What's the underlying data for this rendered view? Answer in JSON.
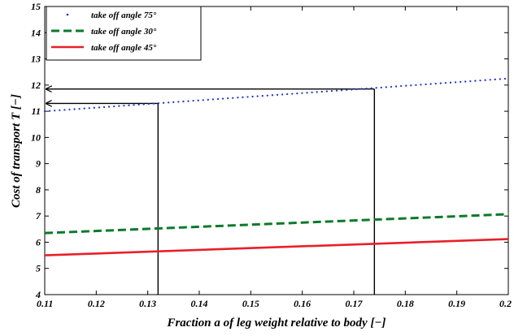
{
  "chart_data": {
    "type": "line",
    "title": "",
    "xlabel": "Fraction a of leg weight relative to body [−]",
    "ylabel": "Cost of transport T [−]",
    "xlim": [
      0.11,
      0.2
    ],
    "ylim": [
      4,
      15
    ],
    "x_ticks": [
      0.11,
      0.12,
      0.13,
      0.14,
      0.15,
      0.16,
      0.17,
      0.18,
      0.19,
      0.2
    ],
    "x_tick_labels": [
      "0.11",
      "0.12",
      "0.13",
      "0.14",
      "0.15",
      "0.16",
      "0.17",
      "0.18",
      "0.19",
      "0.2"
    ],
    "y_ticks": [
      4,
      5,
      6,
      7,
      8,
      9,
      10,
      11,
      12,
      13,
      14,
      15
    ],
    "y_tick_labels": [
      "4",
      "5",
      "6",
      "7",
      "8",
      "9",
      "10",
      "11",
      "12",
      "13",
      "14",
      "15"
    ],
    "grid": false,
    "legend_position": "top-left",
    "series": [
      {
        "name": "take off angle 75°",
        "style": "dotted",
        "color": "#2233cc",
        "x": [
          0.11,
          0.2
        ],
        "y": [
          11.0,
          12.25
        ]
      },
      {
        "name": "take off angle 30°",
        "style": "dashed",
        "color": "#0a7a2a",
        "x": [
          0.11,
          0.2
        ],
        "y": [
          6.35,
          7.07
        ]
      },
      {
        "name": "take off angle 45°",
        "style": "solid",
        "color": "#e8202a",
        "x": [
          0.11,
          0.2
        ],
        "y": [
          5.5,
          6.12
        ]
      }
    ],
    "annotations": [
      {
        "type": "marker-vertical",
        "x": 0.132,
        "y_from": 4,
        "y_to": 11.3
      },
      {
        "type": "marker-arrow-to-y-axis",
        "x_from": 0.132,
        "y": 11.3
      },
      {
        "type": "marker-vertical",
        "x": 0.174,
        "y_from": 4,
        "y_to": 11.85
      },
      {
        "type": "marker-arrow-to-y-axis",
        "x_from": 0.174,
        "y": 11.85
      }
    ]
  }
}
